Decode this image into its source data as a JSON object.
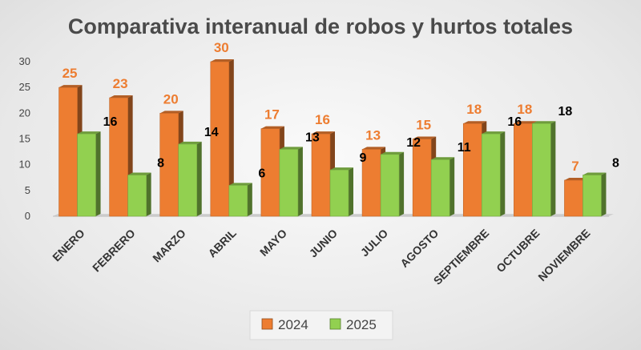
{
  "chart_data": {
    "type": "bar",
    "title": "Comparativa interanual de robos y hurtos totales",
    "xlabel": "",
    "ylabel": "",
    "ylim": [
      0,
      30
    ],
    "yticks": [
      0,
      5,
      10,
      15,
      20,
      25,
      30
    ],
    "grid": false,
    "legend_position": "bottom",
    "categories": [
      "ENERO",
      "FEBRERO",
      "MARZO",
      "ABRIL",
      "MAYO",
      "JUNIO",
      "JULIO",
      "AGOSTO",
      "SEPTIEMBRE",
      "OCTUBRE",
      "NOVIEMBRE"
    ],
    "series": [
      {
        "name": "2024",
        "color": "#ed7d31",
        "values": [
          25,
          23,
          20,
          30,
          17,
          16,
          13,
          15,
          18,
          18,
          7
        ]
      },
      {
        "name": "2025",
        "color": "#92d050",
        "values": [
          16,
          8,
          14,
          6,
          13,
          9,
          12,
          11,
          16,
          18,
          8
        ]
      }
    ]
  }
}
